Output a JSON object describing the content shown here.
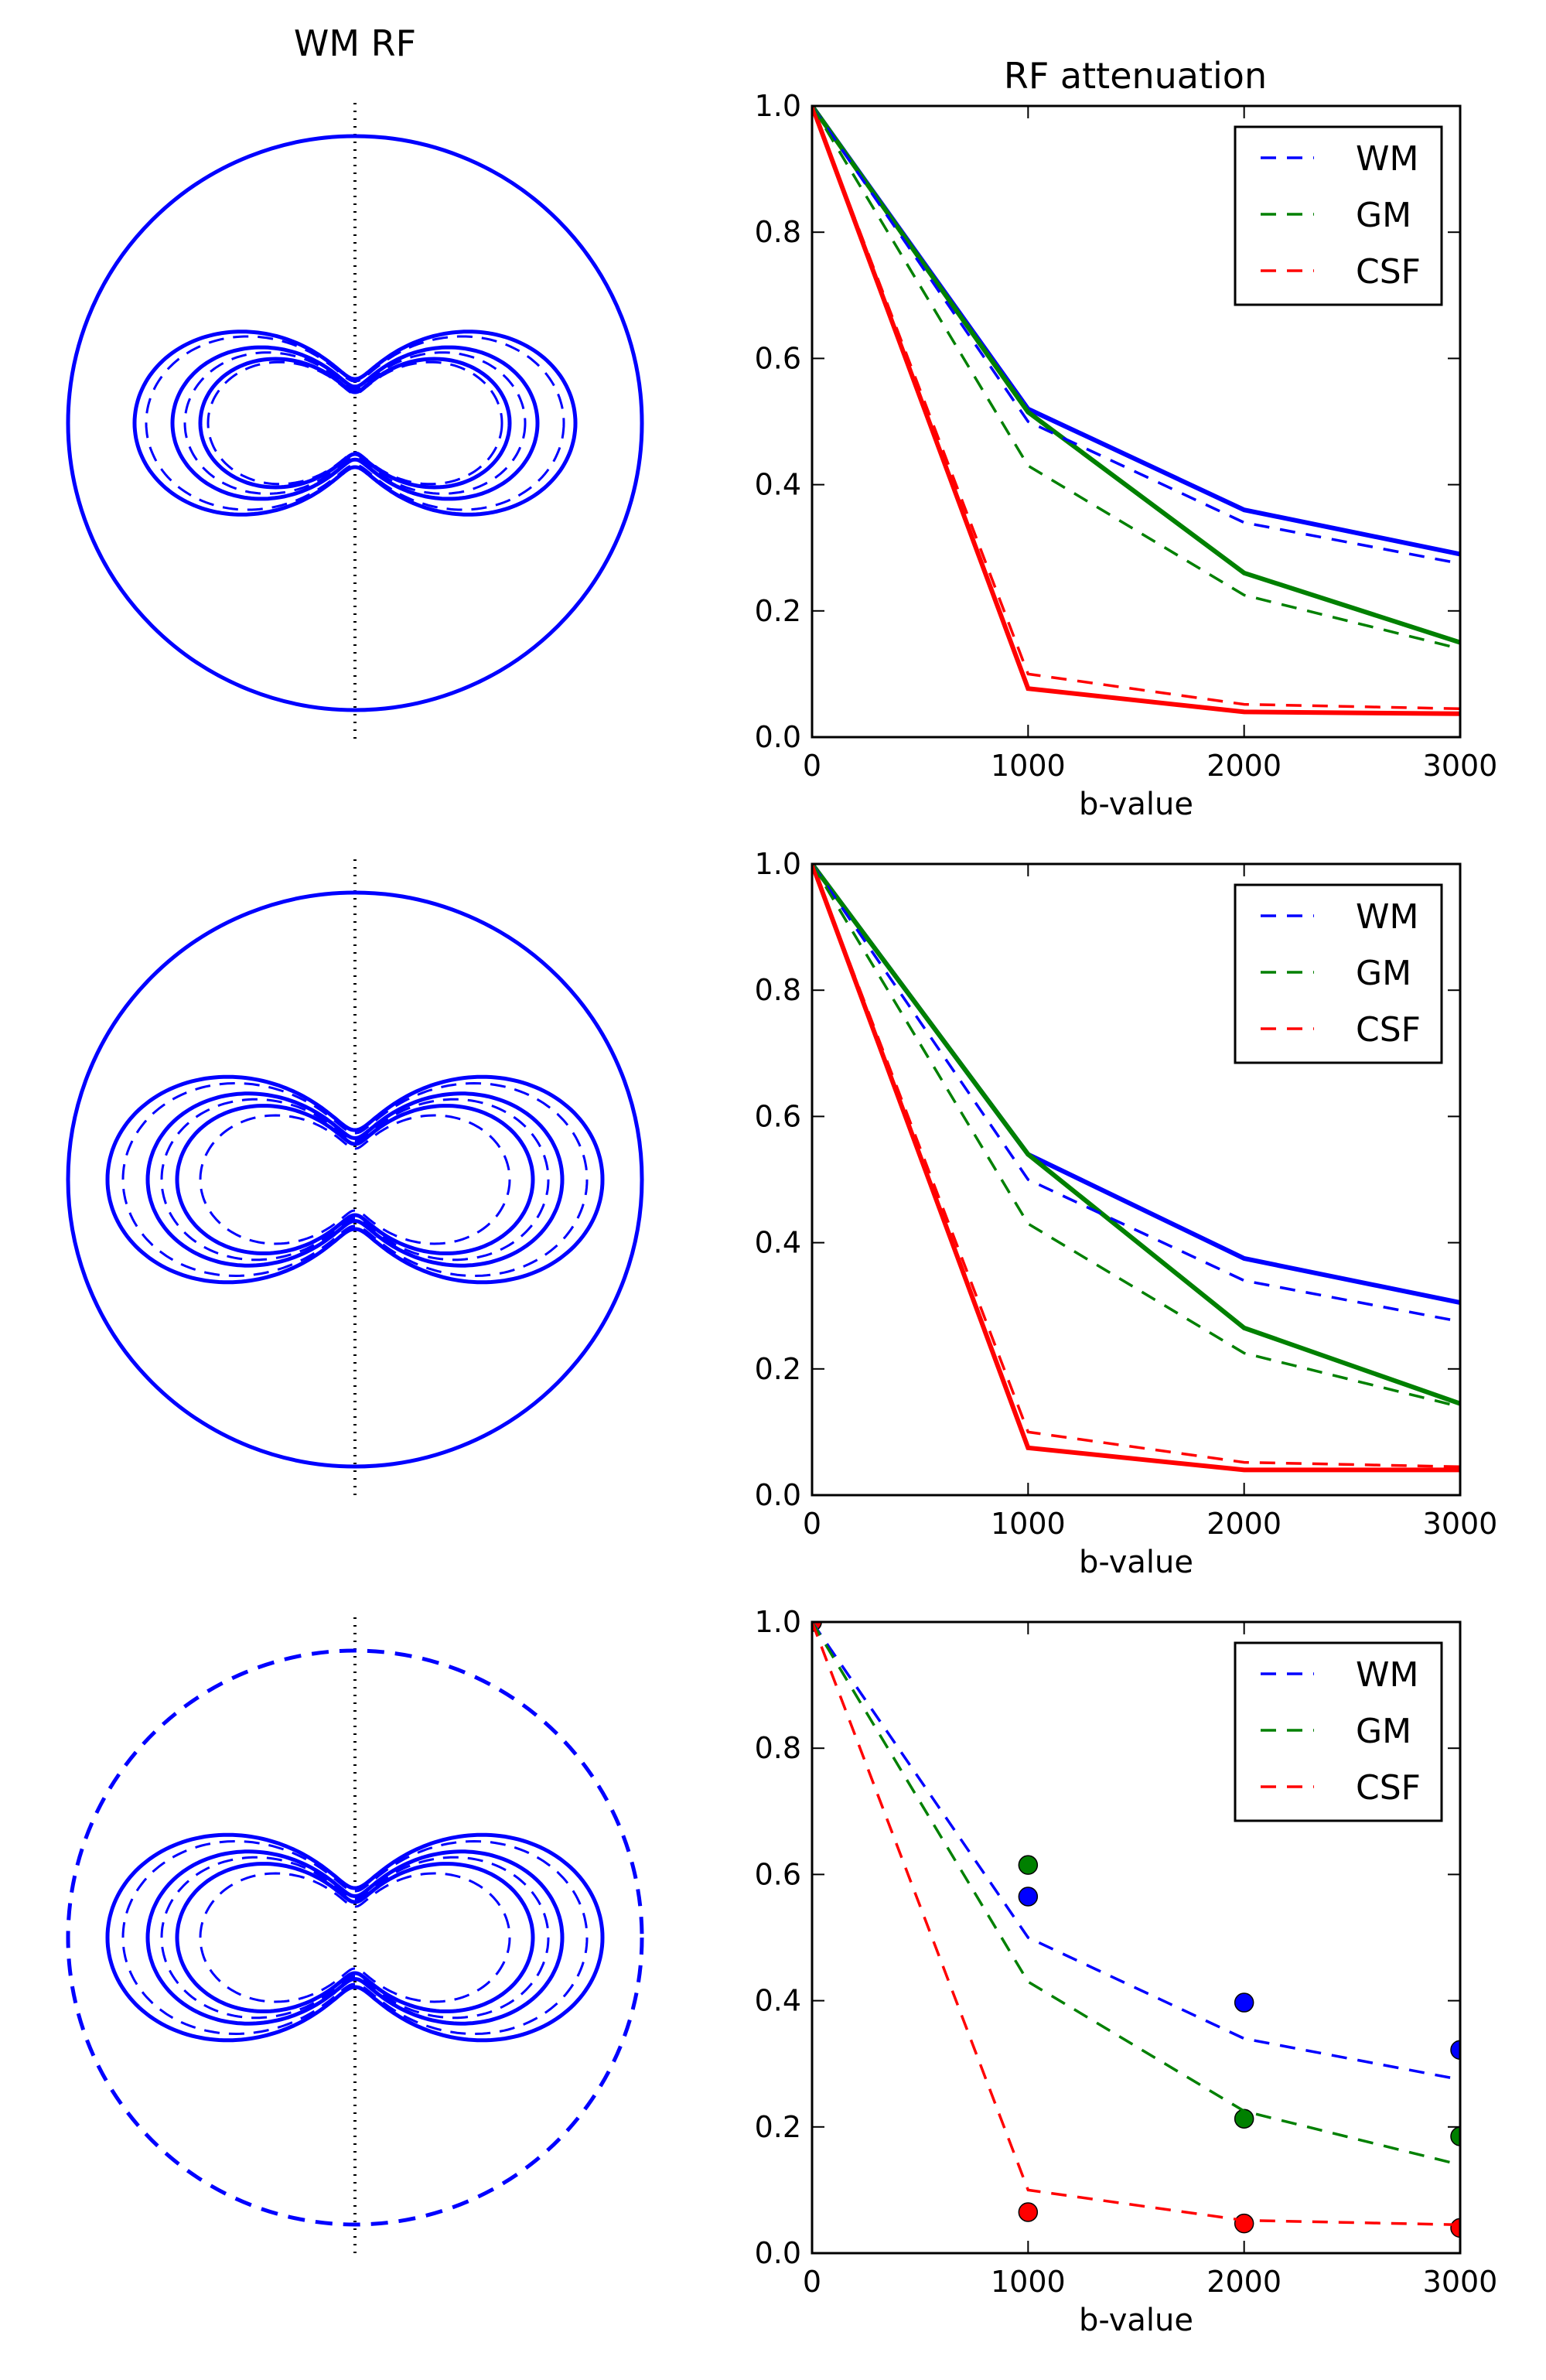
{
  "titles": {
    "left": "WM RF",
    "right": "RF attenuation"
  },
  "colors": {
    "WM": "#0000ff",
    "GM": "#008000",
    "CSF": "#ff0000"
  },
  "polar": [
    {
      "circle_style": "solid",
      "shell_style": "solid"
    },
    {
      "circle_style": "solid",
      "shell_style": "solid"
    },
    {
      "circle_style": "dashed",
      "shell_style": "solid"
    }
  ],
  "chart_data": [
    {
      "type": "line",
      "title": "RF attenuation",
      "xlabel": "b-value",
      "ylabel": "",
      "xlim": [
        0,
        3000
      ],
      "ylim": [
        0,
        1.0
      ],
      "x": [
        0,
        1000,
        2000,
        3000
      ],
      "xticks": [
        "0",
        "1000",
        "2000",
        "3000"
      ],
      "yticks": [
        "0.0",
        "0.2",
        "0.4",
        "0.6",
        "0.8",
        "1.0"
      ],
      "legend": {
        "placement": "top-right",
        "entries": [
          "WM",
          "GM",
          "CSF"
        ]
      },
      "series": [
        {
          "name": "WM",
          "style": "solid",
          "values": [
            1.0,
            0.52,
            0.36,
            0.29
          ]
        },
        {
          "name": "GM",
          "style": "solid",
          "values": [
            1.0,
            0.515,
            0.26,
            0.15
          ]
        },
        {
          "name": "CSF",
          "style": "solid",
          "values": [
            1.0,
            0.077,
            0.04,
            0.037
          ]
        },
        {
          "name": "WM",
          "style": "dashed",
          "values": [
            1.0,
            0.5,
            0.34,
            0.275
          ]
        },
        {
          "name": "GM",
          "style": "dashed",
          "values": [
            1.0,
            0.43,
            0.225,
            0.14
          ]
        },
        {
          "name": "CSF",
          "style": "dashed",
          "values": [
            1.0,
            0.1,
            0.052,
            0.045
          ]
        }
      ]
    },
    {
      "type": "line",
      "title": "",
      "xlabel": "b-value",
      "ylabel": "",
      "xlim": [
        0,
        3000
      ],
      "ylim": [
        0,
        1.0
      ],
      "x": [
        0,
        1000,
        2000,
        3000
      ],
      "xticks": [
        "0",
        "1000",
        "2000",
        "3000"
      ],
      "yticks": [
        "0.0",
        "0.2",
        "0.4",
        "0.6",
        "0.8",
        "1.0"
      ],
      "legend": {
        "placement": "top-right",
        "entries": [
          "WM",
          "GM",
          "CSF"
        ]
      },
      "series": [
        {
          "name": "WM",
          "style": "solid",
          "values": [
            1.0,
            0.54,
            0.375,
            0.305
          ]
        },
        {
          "name": "GM",
          "style": "solid",
          "values": [
            1.0,
            0.54,
            0.265,
            0.145
          ]
        },
        {
          "name": "CSF",
          "style": "solid",
          "values": [
            1.0,
            0.075,
            0.04,
            0.04
          ]
        },
        {
          "name": "WM",
          "style": "dashed",
          "values": [
            1.0,
            0.5,
            0.34,
            0.275
          ]
        },
        {
          "name": "GM",
          "style": "dashed",
          "values": [
            1.0,
            0.43,
            0.225,
            0.14
          ]
        },
        {
          "name": "CSF",
          "style": "dashed",
          "values": [
            1.0,
            0.1,
            0.052,
            0.045
          ]
        }
      ]
    },
    {
      "type": "scatter",
      "title": "",
      "xlabel": "b-value",
      "ylabel": "",
      "xlim": [
        0,
        3000
      ],
      "ylim": [
        0,
        1.0
      ],
      "x": [
        0,
        1000,
        2000,
        3000
      ],
      "xticks": [
        "0",
        "1000",
        "2000",
        "3000"
      ],
      "yticks": [
        "0.0",
        "0.2",
        "0.4",
        "0.6",
        "0.8",
        "1.0"
      ],
      "legend": {
        "placement": "top-right",
        "entries": [
          "WM",
          "GM",
          "CSF"
        ]
      },
      "series": [
        {
          "name": "WM",
          "style": "points",
          "values": [
            1.0,
            0.565,
            0.397,
            0.322
          ]
        },
        {
          "name": "GM",
          "style": "points",
          "values": [
            1.0,
            0.615,
            0.213,
            0.185
          ]
        },
        {
          "name": "CSF",
          "style": "points",
          "values": [
            1.0,
            0.065,
            0.047,
            0.04
          ]
        },
        {
          "name": "WM",
          "style": "dashed",
          "values": [
            1.0,
            0.5,
            0.34,
            0.275
          ]
        },
        {
          "name": "GM",
          "style": "dashed",
          "values": [
            1.0,
            0.43,
            0.225,
            0.14
          ]
        },
        {
          "name": "CSF",
          "style": "dashed",
          "values": [
            1.0,
            0.1,
            0.052,
            0.045
          ]
        }
      ]
    }
  ]
}
